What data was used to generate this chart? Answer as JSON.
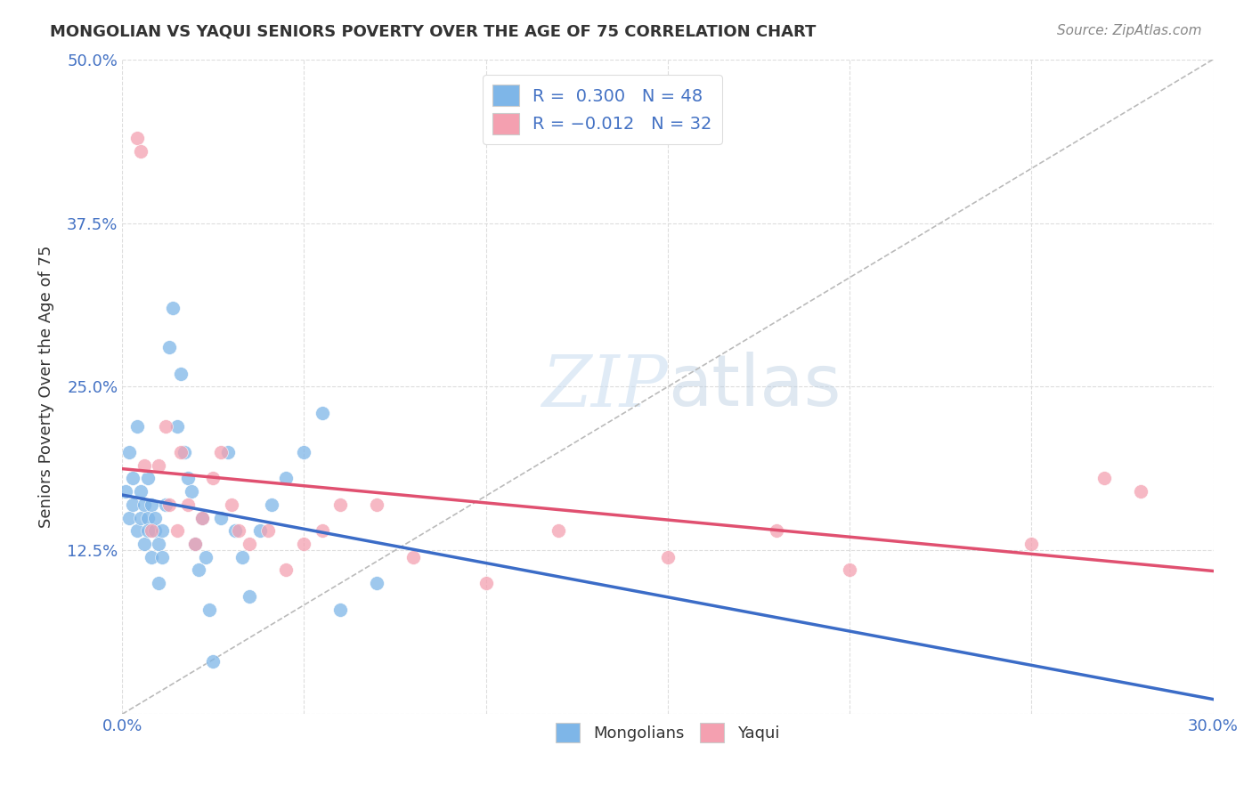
{
  "title": "MONGOLIAN VS YAQUI SENIORS POVERTY OVER THE AGE OF 75 CORRELATION CHART",
  "source": "Source: ZipAtlas.com",
  "ylabel": "Seniors Poverty Over the Age of 75",
  "xlim": [
    0.0,
    0.3
  ],
  "ylim": [
    0.0,
    0.5
  ],
  "mongolian_color": "#7EB6E8",
  "yaqui_color": "#F4A0B0",
  "mongolian_line_color": "#3B6CC7",
  "yaqui_line_color": "#E05070",
  "legend_text_color": "#4472C4",
  "R_mongolian": 0.3,
  "N_mongolian": 48,
  "R_yaqui": -0.012,
  "N_yaqui": 32,
  "watermark_zip": "ZIP",
  "watermark_atlas": "atlas",
  "background_color": "#FFFFFF",
  "grid_color": "#DDDDDD",
  "mongolian_x": [
    0.001,
    0.002,
    0.002,
    0.003,
    0.003,
    0.004,
    0.004,
    0.005,
    0.005,
    0.006,
    0.006,
    0.007,
    0.007,
    0.007,
    0.008,
    0.008,
    0.009,
    0.009,
    0.01,
    0.01,
    0.011,
    0.011,
    0.012,
    0.013,
    0.014,
    0.015,
    0.016,
    0.017,
    0.018,
    0.019,
    0.02,
    0.021,
    0.022,
    0.023,
    0.024,
    0.025,
    0.027,
    0.029,
    0.031,
    0.033,
    0.035,
    0.038,
    0.041,
    0.045,
    0.05,
    0.055,
    0.06,
    0.07
  ],
  "mongolian_y": [
    0.17,
    0.2,
    0.15,
    0.18,
    0.16,
    0.14,
    0.22,
    0.15,
    0.17,
    0.16,
    0.13,
    0.18,
    0.15,
    0.14,
    0.16,
    0.12,
    0.14,
    0.15,
    0.1,
    0.13,
    0.12,
    0.14,
    0.16,
    0.28,
    0.31,
    0.22,
    0.26,
    0.2,
    0.18,
    0.17,
    0.13,
    0.11,
    0.15,
    0.12,
    0.08,
    0.04,
    0.15,
    0.2,
    0.14,
    0.12,
    0.09,
    0.14,
    0.16,
    0.18,
    0.2,
    0.23,
    0.08,
    0.1
  ],
  "yaqui_x": [
    0.004,
    0.005,
    0.006,
    0.008,
    0.01,
    0.012,
    0.013,
    0.015,
    0.016,
    0.018,
    0.02,
    0.022,
    0.025,
    0.027,
    0.03,
    0.032,
    0.035,
    0.04,
    0.045,
    0.05,
    0.055,
    0.06,
    0.07,
    0.08,
    0.1,
    0.12,
    0.15,
    0.18,
    0.2,
    0.25,
    0.27,
    0.28
  ],
  "yaqui_y": [
    0.44,
    0.43,
    0.19,
    0.14,
    0.19,
    0.22,
    0.16,
    0.14,
    0.2,
    0.16,
    0.13,
    0.15,
    0.18,
    0.2,
    0.16,
    0.14,
    0.13,
    0.14,
    0.11,
    0.13,
    0.14,
    0.16,
    0.16,
    0.12,
    0.1,
    0.14,
    0.12,
    0.14,
    0.11,
    0.13,
    0.18,
    0.17
  ]
}
